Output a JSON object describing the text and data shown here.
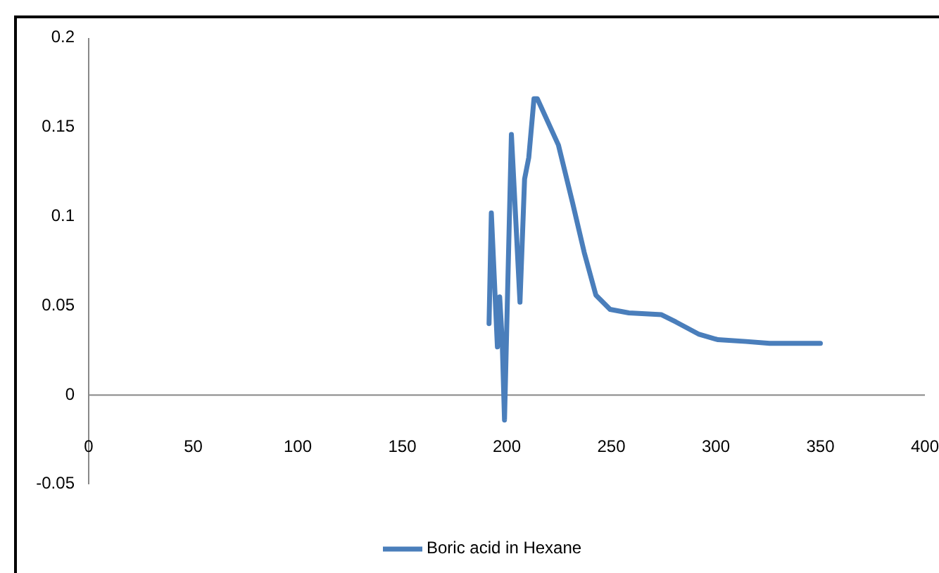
{
  "chart_data": {
    "type": "line",
    "xlim": [
      0,
      400
    ],
    "xticks": [
      0,
      50,
      100,
      150,
      200,
      250,
      300,
      350,
      400
    ],
    "ylim": [
      -0.05,
      0.2
    ],
    "yticks": [
      -0.05,
      0,
      0.05,
      0.1,
      0.15,
      0.2
    ],
    "grid": false,
    "legend": "bottom",
    "marker": "none",
    "line_style": "solid",
    "x": [
      191.5,
      192.6,
      195.5,
      196.6,
      197.8,
      198.9,
      202.2,
      206.3,
      208.5,
      210.5,
      213,
      214.6,
      224.7,
      231.4,
      237,
      242.6,
      249.4,
      258.4,
      274,
      280.8,
      292,
      301,
      314.5,
      325.7,
      350
    ],
    "series": [
      {
        "name": "Boric acid in Hexane",
        "color": "#4a7ebb",
        "values": [
          0.04,
          0.102,
          0.027,
          0.055,
          0.03,
          -0.014,
          0.146,
          0.052,
          0.121,
          0.133,
          0.166,
          0.166,
          0.14,
          0.108,
          0.08,
          0.056,
          0.048,
          0.046,
          0.045,
          0.041,
          0.034,
          0.031,
          0.03,
          0.029,
          0.029
        ]
      }
    ]
  }
}
